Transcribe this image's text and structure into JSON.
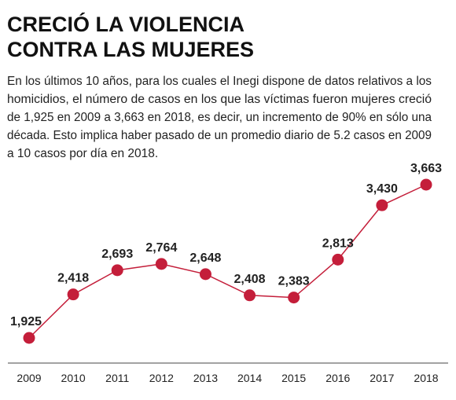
{
  "chart_data": {
    "type": "line",
    "title": [
      "CRECIÓ LA VIOLENCIA",
      "CONTRA LAS MUJERES"
    ],
    "subtitle": [
      "En los últimos 10 años, para los cuales el Inegi dispone de datos relativos a los",
      "homicidios, el número de casos en los que las víctimas fueron mujeres creció",
      "de 1,925 en 2009 a 3,663 en 2018, es decir, un incremento de 90% en sólo una",
      "década. Esto implica haber pasado de un promedio diario de 5.2 casos en 2009",
      "a 10 casos por día en 2018."
    ],
    "categories": [
      "2009",
      "2010",
      "2011",
      "2012",
      "2013",
      "2014",
      "2015",
      "2016",
      "2017",
      "2018"
    ],
    "values": [
      1925,
      2418,
      2693,
      2764,
      2648,
      2408,
      2383,
      2813,
      3430,
      3663
    ],
    "value_labels": [
      "1,925",
      "2,418",
      "2,693",
      "2,764",
      "2,648",
      "2,408",
      "2,383",
      "2,813",
      "3,430",
      "3,663"
    ],
    "color": "#c41e3a"
  }
}
